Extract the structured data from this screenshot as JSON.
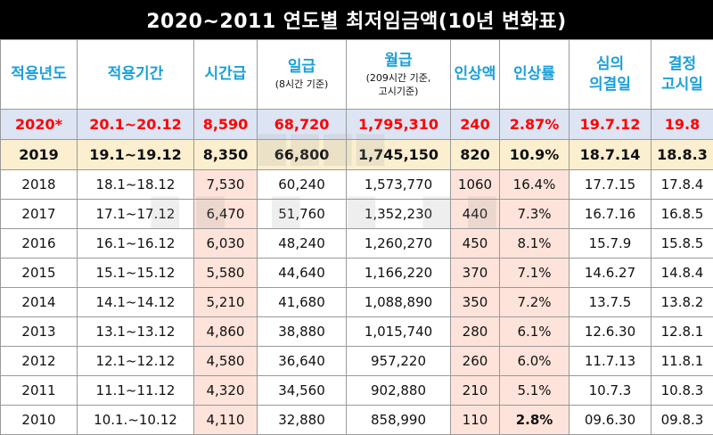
{
  "title": "2020~2011 연도별 최저임금액(10년 변화표)",
  "headers": {
    "year": "적용년도",
    "period": "적용기간",
    "hourly": "시간급",
    "daily": "일급",
    "daily_sub": "(8시간 기준)",
    "monthly": "월급",
    "monthly_sub1": "(209시간 기준,",
    "monthly_sub2": "고시기준)",
    "raise": "인상액",
    "rate": "인상률",
    "decision_1": "심의",
    "decision_2": "의결일",
    "notice_1": "결정",
    "notice_2": "고시일"
  },
  "rows": [
    {
      "year": "2020*",
      "period": "20.1~20.12",
      "hourly": "8,590",
      "daily": "68,720",
      "monthly": "1,795,310",
      "raise": "240",
      "rate": "2.87%",
      "decision": "19.7.12",
      "notice": "19.8"
    },
    {
      "year": "2019",
      "period": "19.1~19.12",
      "hourly": "8,350",
      "daily": "66,800",
      "monthly": "1,745,150",
      "raise": "820",
      "rate": "10.9%",
      "decision": "18.7.14",
      "notice": "18.8.3"
    },
    {
      "year": "2018",
      "period": "18.1~18.12",
      "hourly": "7,530",
      "daily": "60,240",
      "monthly": "1,573,770",
      "raise": "1060",
      "rate": "16.4%",
      "decision": "17.7.15",
      "notice": "17.8.4"
    },
    {
      "year": "2017",
      "period": "17.1~17.12",
      "hourly": "6,470",
      "daily": "51,760",
      "monthly": "1,352,230",
      "raise": "440",
      "rate": "7.3%",
      "decision": "16.7.16",
      "notice": "16.8.5"
    },
    {
      "year": "2016",
      "period": "16.1~16.12",
      "hourly": "6,030",
      "daily": "48,240",
      "monthly": "1,260,270",
      "raise": "450",
      "rate": "8.1%",
      "decision": "15.7.9",
      "notice": "15.8.5"
    },
    {
      "year": "2015",
      "period": "15.1~15.12",
      "hourly": "5,580",
      "daily": "44,640",
      "monthly": "1,166,220",
      "raise": "370",
      "rate": "7.1%",
      "decision": "14.6.27",
      "notice": "14.8.4"
    },
    {
      "year": "2014",
      "period": "14.1~14.12",
      "hourly": "5,210",
      "daily": "41,680",
      "monthly": "1,088,890",
      "raise": "350",
      "rate": "7.2%",
      "decision": "13.7.5",
      "notice": "13.8.2"
    },
    {
      "year": "2013",
      "period": "13.1~13.12",
      "hourly": "4,860",
      "daily": "38,880",
      "monthly": "1,015,740",
      "raise": "280",
      "rate": "6.1%",
      "decision": "12.6.30",
      "notice": "12.8.1"
    },
    {
      "year": "2012",
      "period": "12.1~12.12",
      "hourly": "4,580",
      "daily": "36,640",
      "monthly": "957,220",
      "raise": "260",
      "rate": "6.0%",
      "decision": "11.7.13",
      "notice": "11.8.1"
    },
    {
      "year": "2011",
      "period": "11.1~11.12",
      "hourly": "4,320",
      "daily": "34,560",
      "monthly": "902,880",
      "raise": "210",
      "rate": "5.1%",
      "decision": "10.7.3",
      "notice": "10.8.3"
    },
    {
      "year": "2010",
      "period": "10.1.~10.12",
      "hourly": "4,110",
      "daily": "32,880",
      "monthly": "858,990",
      "raise": "110",
      "rate": "2.8%",
      "decision": "09.6.30",
      "notice": "09.8.3"
    }
  ],
  "colors": {
    "header_text": "#1ca0d8",
    "highlight_red": "#ff0000",
    "row_2020_bg": "#dde4f4",
    "row_2019_bg": "#fcefcf",
    "pink_cell_bg": "#fde3da"
  }
}
